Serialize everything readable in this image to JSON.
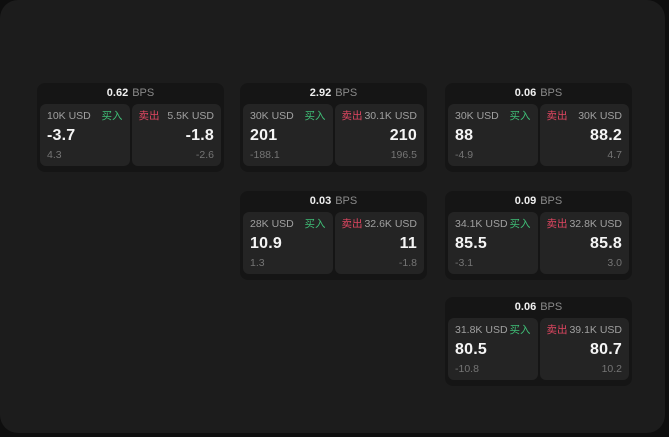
{
  "colors": {
    "buy_green": "#3fbf77",
    "sell_red": "#df4661",
    "panel_background": "#1c1c1c",
    "card_background": "#151515",
    "tile_background": "#242424"
  },
  "cards": [
    {
      "bps_value": "0.62",
      "bps_unit": "BPS",
      "buy": {
        "amount": "10K USD",
        "side": "买入",
        "price": "-3.7",
        "delta": "4.3"
      },
      "sell": {
        "side": "卖出",
        "amount": "5.5K USD",
        "price": "-1.8",
        "delta": "-2.6"
      }
    },
    {
      "bps_value": "2.92",
      "bps_unit": "BPS",
      "buy": {
        "amount": "30K USD",
        "side": "买入",
        "price": "201",
        "delta": "-188.1"
      },
      "sell": {
        "side": "卖出",
        "amount": "30.1K USD",
        "price": "210",
        "delta": "196.5"
      }
    },
    {
      "bps_value": "0.06",
      "bps_unit": "BPS",
      "buy": {
        "amount": "30K USD",
        "side": "买入",
        "price": "88",
        "delta": "-4.9"
      },
      "sell": {
        "side": "卖出",
        "amount": "30K USD",
        "price": "88.2",
        "delta": "4.7"
      }
    },
    {
      "bps_value": "0.03",
      "bps_unit": "BPS",
      "buy": {
        "amount": "28K USD",
        "side": "买入",
        "price": "10.9",
        "delta": "1.3"
      },
      "sell": {
        "side": "卖出",
        "amount": "32.6K USD",
        "price": "11",
        "delta": "-1.8"
      }
    },
    {
      "bps_value": "0.09",
      "bps_unit": "BPS",
      "buy": {
        "amount": "34.1K USD",
        "side": "买入",
        "price": "85.5",
        "delta": "-3.1"
      },
      "sell": {
        "side": "卖出",
        "amount": "32.8K USD",
        "price": "85.8",
        "delta": "3.0"
      }
    },
    {
      "bps_value": "0.06",
      "bps_unit": "BPS",
      "buy": {
        "amount": "31.8K USD",
        "side": "买入",
        "price": "80.5",
        "delta": "-10.8"
      },
      "sell": {
        "side": "卖出",
        "amount": "39.1K USD",
        "price": "80.7",
        "delta": "10.2"
      }
    }
  ]
}
